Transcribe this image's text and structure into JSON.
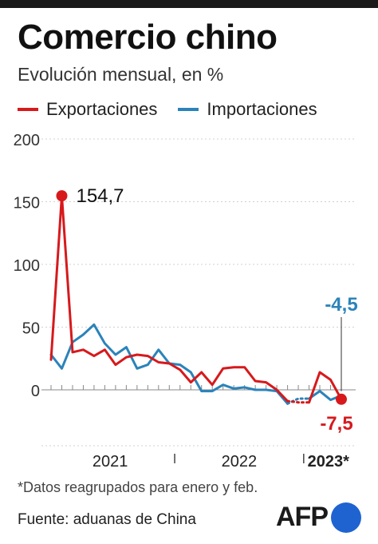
{
  "header": {
    "title": "Comercio chino",
    "subtitle": "Evolución mensual, en %"
  },
  "legend": {
    "exports_label": "Exportaciones",
    "imports_label": "Importaciones"
  },
  "colors": {
    "exports": "#d7191c",
    "imports": "#2b83ba",
    "axis": "#999999",
    "text": "#222222",
    "afp_dot": "#1f63d1"
  },
  "chart_data": {
    "type": "line",
    "title": "Comercio chino",
    "subtitle": "Evolución mensual, en %",
    "ylim": [
      -10,
      200
    ],
    "y_ticks": [
      "200",
      "150",
      "100",
      "50",
      "0"
    ],
    "y_tick_values": [
      200,
      150,
      100,
      50,
      0
    ],
    "x_labels": [
      "2021",
      "2022",
      "2023*"
    ],
    "grid": false,
    "legend_position": "top-left",
    "series": [
      {
        "name": "Exportaciones",
        "x": [
          "2021-01",
          "2021-02",
          "2021-03",
          "2021-04",
          "2021-05",
          "2021-06",
          "2021-07",
          "2021-08",
          "2021-09",
          "2021-10",
          "2021-11",
          "2021-12",
          "2022-01",
          "2022-02",
          "2022-03",
          "2022-04",
          "2022-05",
          "2022-06",
          "2022-07",
          "2022-08",
          "2022-09",
          "2022-10",
          "2022-11",
          "2022-12",
          "2023-01",
          "2023-02",
          "2023-03",
          "2023-04"
        ],
        "values": [
          24,
          154.7,
          30,
          32,
          27,
          32,
          20,
          26,
          28,
          27,
          22,
          21,
          16,
          6,
          14,
          4,
          17,
          18,
          18,
          7,
          6,
          0,
          -9,
          -10,
          -10,
          14,
          8,
          -7.5
        ],
        "segments": [
          [
            0,
            22
          ],
          [
            22,
            24
          ],
          [
            24,
            27
          ]
        ]
      },
      {
        "name": "Importaciones",
        "x": [
          "2021-01",
          "2021-02",
          "2021-03",
          "2021-04",
          "2021-05",
          "2021-06",
          "2021-07",
          "2021-08",
          "2021-09",
          "2021-10",
          "2021-11",
          "2021-12",
          "2022-01",
          "2022-02",
          "2022-03",
          "2022-04",
          "2022-05",
          "2022-06",
          "2022-07",
          "2022-08",
          "2022-09",
          "2022-10",
          "2022-11",
          "2022-12",
          "2023-01",
          "2023-02",
          "2023-03",
          "2023-04"
        ],
        "values": [
          28,
          17,
          38,
          44,
          52,
          37,
          28,
          34,
          17,
          20,
          32,
          21,
          20,
          14,
          -1,
          -1,
          4,
          1,
          2,
          0,
          0,
          -1,
          -11,
          -7,
          -7,
          -1,
          -8,
          -4.5
        ],
        "segments": [
          [
            0,
            22
          ],
          [
            22,
            24
          ],
          [
            24,
            27
          ]
        ]
      }
    ],
    "annotations": [
      {
        "text": "154,7",
        "series": 0,
        "index": 1
      },
      {
        "text": "-4,5",
        "series": 1,
        "index": 27
      },
      {
        "text": "-7,5",
        "series": 0,
        "index": 27
      }
    ]
  },
  "footer": {
    "note": "*Datos reagrupados para enero y feb.",
    "source": "Fuente: aduanas de China",
    "logo_text": "AFP"
  }
}
